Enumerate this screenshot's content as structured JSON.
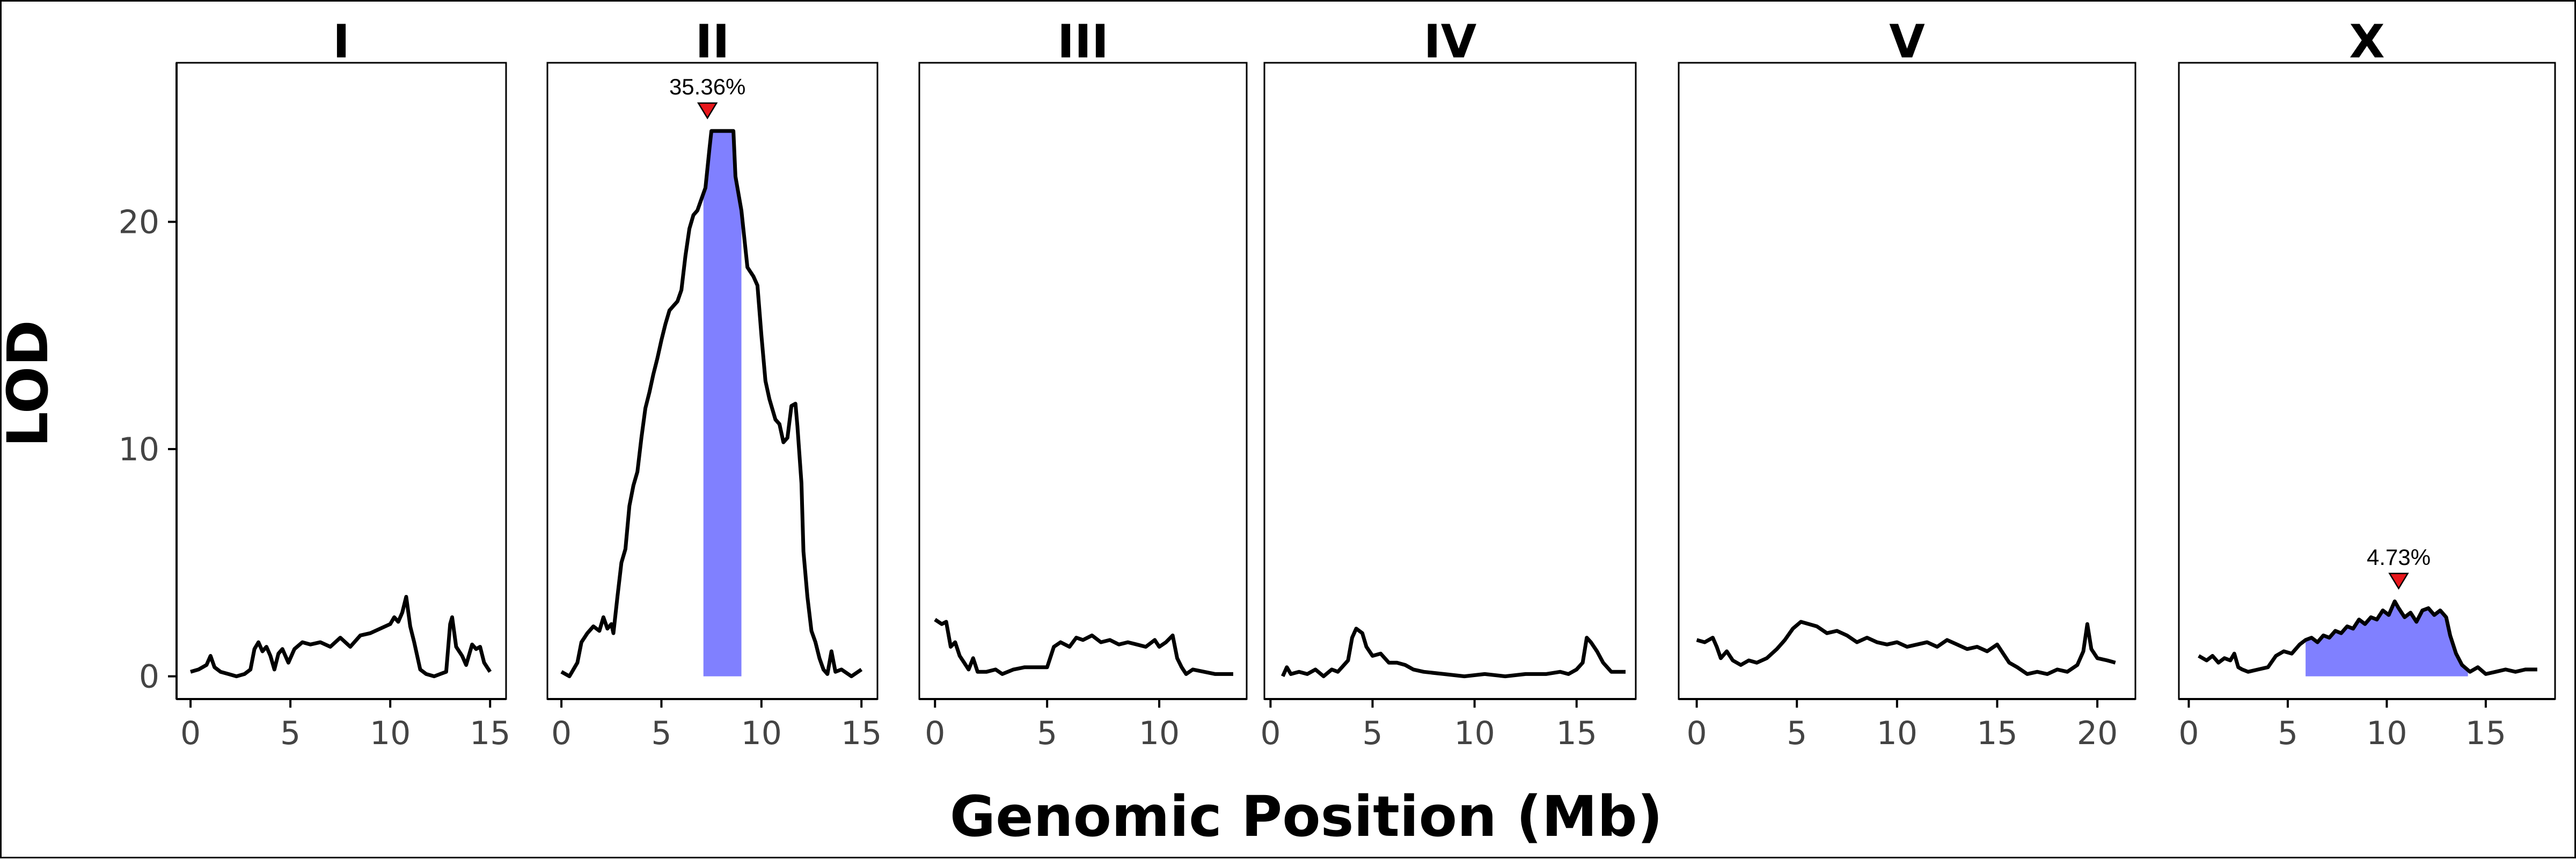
{
  "chart_data": {
    "type": "line",
    "xlabel": "Genomic Position (Mb)",
    "ylabel": "LOD",
    "ylim": [
      -1,
      27
    ],
    "yticks": [
      0,
      10,
      20
    ],
    "grid": false,
    "colors": {
      "line": "#000000",
      "interval": "#8080ff",
      "marker": "#e8161b"
    },
    "panels": [
      {
        "name": "I",
        "xlim": [
          -0.7,
          15.8
        ],
        "xticks": [
          0,
          5,
          10,
          15
        ],
        "points": [
          [
            0,
            0.2
          ],
          [
            0.4,
            0.3
          ],
          [
            0.8,
            0.5
          ],
          [
            1.0,
            0.9
          ],
          [
            1.2,
            0.4
          ],
          [
            1.5,
            0.2
          ],
          [
            1.9,
            0.1
          ],
          [
            2.3,
            0.0
          ],
          [
            2.7,
            0.1
          ],
          [
            3.0,
            0.3
          ],
          [
            3.2,
            1.2
          ],
          [
            3.4,
            1.5
          ],
          [
            3.6,
            1.1
          ],
          [
            3.8,
            1.3
          ],
          [
            4.0,
            0.9
          ],
          [
            4.2,
            0.3
          ],
          [
            4.4,
            1.0
          ],
          [
            4.6,
            1.2
          ],
          [
            4.9,
            0.6
          ],
          [
            5.2,
            1.2
          ],
          [
            5.6,
            1.5
          ],
          [
            6.0,
            1.4
          ],
          [
            6.5,
            1.5
          ],
          [
            7.0,
            1.3
          ],
          [
            7.5,
            1.7
          ],
          [
            8.0,
            1.3
          ],
          [
            8.5,
            1.8
          ],
          [
            9.0,
            1.9
          ],
          [
            9.5,
            2.1
          ],
          [
            10.0,
            2.3
          ],
          [
            10.2,
            2.6
          ],
          [
            10.4,
            2.4
          ],
          [
            10.6,
            2.8
          ],
          [
            10.8,
            3.5
          ],
          [
            11.0,
            2.2
          ],
          [
            11.2,
            1.5
          ],
          [
            11.5,
            0.3
          ],
          [
            11.8,
            0.1
          ],
          [
            12.2,
            0.0
          ],
          [
            12.5,
            0.1
          ],
          [
            12.8,
            0.2
          ],
          [
            13.0,
            2.3
          ],
          [
            13.1,
            2.6
          ],
          [
            13.3,
            1.3
          ],
          [
            13.6,
            0.9
          ],
          [
            13.8,
            0.5
          ],
          [
            14.1,
            1.4
          ],
          [
            14.3,
            1.2
          ],
          [
            14.5,
            1.3
          ],
          [
            14.7,
            0.6
          ],
          [
            15.0,
            0.2
          ]
        ],
        "intervals": [],
        "peaks": []
      },
      {
        "name": "II",
        "xlim": [
          -0.7,
          15.8
        ],
        "xticks": [
          0,
          5,
          10,
          15
        ],
        "points": [
          [
            0,
            0.2
          ],
          [
            0.4,
            0.0
          ],
          [
            0.8,
            0.6
          ],
          [
            1.0,
            1.5
          ],
          [
            1.3,
            1.9
          ],
          [
            1.6,
            2.2
          ],
          [
            1.9,
            2.0
          ],
          [
            2.1,
            2.6
          ],
          [
            2.3,
            2.1
          ],
          [
            2.5,
            2.3
          ],
          [
            2.6,
            1.9
          ],
          [
            2.8,
            3.5
          ],
          [
            3.0,
            5.0
          ],
          [
            3.2,
            5.6
          ],
          [
            3.4,
            7.5
          ],
          [
            3.6,
            8.4
          ],
          [
            3.8,
            9.0
          ],
          [
            4.0,
            10.5
          ],
          [
            4.2,
            11.8
          ],
          [
            4.4,
            12.5
          ],
          [
            4.6,
            13.3
          ],
          [
            4.8,
            14.0
          ],
          [
            5.0,
            14.8
          ],
          [
            5.2,
            15.5
          ],
          [
            5.4,
            16.1
          ],
          [
            5.6,
            16.3
          ],
          [
            5.8,
            16.5
          ],
          [
            6.0,
            17.0
          ],
          [
            6.2,
            18.5
          ],
          [
            6.4,
            19.7
          ],
          [
            6.6,
            20.3
          ],
          [
            6.8,
            20.5
          ],
          [
            7.0,
            21.0
          ],
          [
            7.2,
            21.5
          ],
          [
            7.4,
            23.2
          ],
          [
            7.5,
            24.0
          ],
          [
            8.6,
            24.0
          ],
          [
            8.7,
            22.0
          ],
          [
            9.0,
            20.5
          ],
          [
            9.3,
            18.0
          ],
          [
            9.6,
            17.6
          ],
          [
            9.8,
            17.2
          ],
          [
            10.0,
            15.0
          ],
          [
            10.2,
            13.0
          ],
          [
            10.4,
            12.2
          ],
          [
            10.7,
            11.3
          ],
          [
            10.9,
            11.1
          ],
          [
            11.1,
            10.3
          ],
          [
            11.3,
            10.5
          ],
          [
            11.5,
            11.9
          ],
          [
            11.7,
            12.0
          ],
          [
            11.8,
            11.0
          ],
          [
            12.0,
            8.5
          ],
          [
            12.1,
            5.5
          ],
          [
            12.3,
            3.5
          ],
          [
            12.5,
            2.0
          ],
          [
            12.7,
            1.5
          ],
          [
            12.9,
            0.8
          ],
          [
            13.1,
            0.3
          ],
          [
            13.3,
            0.1
          ],
          [
            13.5,
            1.1
          ],
          [
            13.7,
            0.2
          ],
          [
            14.0,
            0.3
          ],
          [
            14.5,
            0.0
          ],
          [
            15.0,
            0.3
          ]
        ],
        "intervals": [
          {
            "x0": 7.1,
            "x1": 9.0,
            "from_baseline": true
          }
        ],
        "peaks": [
          {
            "x": 7.3,
            "y": 24.0,
            "label": "35.36%"
          }
        ]
      },
      {
        "name": "III",
        "xlim": [
          -0.7,
          13.9
        ],
        "xticks": [
          0,
          5,
          10
        ],
        "points": [
          [
            0,
            2.5
          ],
          [
            0.3,
            2.3
          ],
          [
            0.5,
            2.4
          ],
          [
            0.7,
            1.3
          ],
          [
            0.9,
            1.5
          ],
          [
            1.1,
            0.9
          ],
          [
            1.3,
            0.6
          ],
          [
            1.5,
            0.3
          ],
          [
            1.7,
            0.8
          ],
          [
            1.9,
            0.2
          ],
          [
            2.3,
            0.2
          ],
          [
            2.7,
            0.3
          ],
          [
            3.0,
            0.1
          ],
          [
            3.5,
            0.3
          ],
          [
            4.0,
            0.4
          ],
          [
            4.5,
            0.4
          ],
          [
            5.0,
            0.4
          ],
          [
            5.3,
            1.3
          ],
          [
            5.6,
            1.5
          ],
          [
            6.0,
            1.3
          ],
          [
            6.3,
            1.7
          ],
          [
            6.6,
            1.6
          ],
          [
            7.0,
            1.8
          ],
          [
            7.4,
            1.5
          ],
          [
            7.8,
            1.6
          ],
          [
            8.2,
            1.4
          ],
          [
            8.6,
            1.5
          ],
          [
            9.0,
            1.4
          ],
          [
            9.4,
            1.3
          ],
          [
            9.8,
            1.6
          ],
          [
            10.0,
            1.3
          ],
          [
            10.3,
            1.5
          ],
          [
            10.6,
            1.8
          ],
          [
            10.8,
            0.8
          ],
          [
            11.0,
            0.4
          ],
          [
            11.2,
            0.1
          ],
          [
            11.5,
            0.3
          ],
          [
            12.0,
            0.2
          ],
          [
            12.5,
            0.1
          ],
          [
            13.3,
            0.1
          ]
        ],
        "intervals": [],
        "peaks": []
      },
      {
        "name": "IV",
        "xlim": [
          -0.3,
          17.9
        ],
        "xticks": [
          0,
          5,
          10,
          15
        ],
        "points": [
          [
            0.6,
            0.0
          ],
          [
            0.8,
            0.4
          ],
          [
            1.0,
            0.1
          ],
          [
            1.4,
            0.2
          ],
          [
            1.8,
            0.1
          ],
          [
            2.2,
            0.3
          ],
          [
            2.6,
            0.0
          ],
          [
            3.0,
            0.3
          ],
          [
            3.3,
            0.2
          ],
          [
            3.6,
            0.5
          ],
          [
            3.8,
            0.7
          ],
          [
            4.0,
            1.7
          ],
          [
            4.2,
            2.1
          ],
          [
            4.5,
            1.9
          ],
          [
            4.7,
            1.3
          ],
          [
            5.0,
            0.9
          ],
          [
            5.4,
            1.0
          ],
          [
            5.8,
            0.6
          ],
          [
            6.2,
            0.6
          ],
          [
            6.6,
            0.5
          ],
          [
            7.0,
            0.3
          ],
          [
            7.5,
            0.2
          ],
          [
            8.5,
            0.1
          ],
          [
            9.5,
            0.0
          ],
          [
            10.5,
            0.1
          ],
          [
            11.5,
            0.0
          ],
          [
            12.5,
            0.1
          ],
          [
            13.5,
            0.1
          ],
          [
            14.2,
            0.2
          ],
          [
            14.6,
            0.1
          ],
          [
            15.0,
            0.3
          ],
          [
            15.3,
            0.6
          ],
          [
            15.5,
            1.7
          ],
          [
            15.7,
            1.5
          ],
          [
            16.0,
            1.1
          ],
          [
            16.3,
            0.6
          ],
          [
            16.7,
            0.2
          ],
          [
            17.4,
            0.2
          ]
        ],
        "intervals": [],
        "peaks": []
      },
      {
        "name": "V",
        "xlim": [
          -0.9,
          21.9
        ],
        "xticks": [
          0,
          5,
          10,
          15,
          20
        ],
        "points": [
          [
            0,
            1.6
          ],
          [
            0.4,
            1.5
          ],
          [
            0.8,
            1.7
          ],
          [
            1.0,
            1.3
          ],
          [
            1.2,
            0.8
          ],
          [
            1.5,
            1.1
          ],
          [
            1.8,
            0.7
          ],
          [
            2.2,
            0.5
          ],
          [
            2.6,
            0.7
          ],
          [
            3.0,
            0.6
          ],
          [
            3.5,
            0.8
          ],
          [
            4.0,
            1.2
          ],
          [
            4.4,
            1.6
          ],
          [
            4.8,
            2.1
          ],
          [
            5.2,
            2.4
          ],
          [
            5.6,
            2.3
          ],
          [
            6.0,
            2.2
          ],
          [
            6.5,
            1.9
          ],
          [
            7.0,
            2.0
          ],
          [
            7.5,
            1.8
          ],
          [
            8.0,
            1.5
          ],
          [
            8.5,
            1.7
          ],
          [
            9.0,
            1.5
          ],
          [
            9.5,
            1.4
          ],
          [
            10.0,
            1.5
          ],
          [
            10.5,
            1.3
          ],
          [
            11.0,
            1.4
          ],
          [
            11.5,
            1.5
          ],
          [
            12.0,
            1.3
          ],
          [
            12.5,
            1.6
          ],
          [
            13.0,
            1.4
          ],
          [
            13.5,
            1.2
          ],
          [
            14.0,
            1.3
          ],
          [
            14.5,
            1.1
          ],
          [
            15.0,
            1.4
          ],
          [
            15.3,
            1.0
          ],
          [
            15.6,
            0.6
          ],
          [
            16.0,
            0.4
          ],
          [
            16.5,
            0.1
          ],
          [
            17.0,
            0.2
          ],
          [
            17.5,
            0.1
          ],
          [
            18.0,
            0.3
          ],
          [
            18.5,
            0.2
          ],
          [
            19.0,
            0.5
          ],
          [
            19.3,
            1.1
          ],
          [
            19.5,
            2.3
          ],
          [
            19.7,
            1.2
          ],
          [
            20.0,
            0.8
          ],
          [
            20.5,
            0.7
          ],
          [
            20.9,
            0.6
          ]
        ],
        "intervals": [],
        "peaks": []
      },
      {
        "name": "X",
        "xlim": [
          -0.5,
          18.5
        ],
        "xticks": [
          0,
          5,
          10,
          15
        ],
        "points": [
          [
            0.5,
            0.9
          ],
          [
            0.9,
            0.7
          ],
          [
            1.2,
            0.9
          ],
          [
            1.5,
            0.6
          ],
          [
            1.8,
            0.8
          ],
          [
            2.1,
            0.7
          ],
          [
            2.3,
            1.0
          ],
          [
            2.5,
            0.4
          ],
          [
            2.7,
            0.3
          ],
          [
            3.0,
            0.2
          ],
          [
            3.5,
            0.3
          ],
          [
            4.0,
            0.4
          ],
          [
            4.4,
            0.9
          ],
          [
            4.8,
            1.1
          ],
          [
            5.2,
            1.0
          ],
          [
            5.6,
            1.4
          ],
          [
            5.9,
            1.6
          ],
          [
            6.2,
            1.7
          ],
          [
            6.5,
            1.5
          ],
          [
            6.8,
            1.8
          ],
          [
            7.1,
            1.7
          ],
          [
            7.4,
            2.0
          ],
          [
            7.7,
            1.9
          ],
          [
            8.0,
            2.2
          ],
          [
            8.3,
            2.1
          ],
          [
            8.6,
            2.5
          ],
          [
            8.9,
            2.3
          ],
          [
            9.2,
            2.6
          ],
          [
            9.5,
            2.5
          ],
          [
            9.8,
            2.9
          ],
          [
            10.1,
            2.7
          ],
          [
            10.4,
            3.3
          ],
          [
            10.6,
            3.0
          ],
          [
            10.9,
            2.6
          ],
          [
            11.2,
            2.8
          ],
          [
            11.5,
            2.4
          ],
          [
            11.8,
            2.9
          ],
          [
            12.1,
            3.0
          ],
          [
            12.4,
            2.7
          ],
          [
            12.7,
            2.9
          ],
          [
            13.0,
            2.6
          ],
          [
            13.2,
            1.8
          ],
          [
            13.5,
            1.0
          ],
          [
            13.8,
            0.5
          ],
          [
            14.2,
            0.2
          ],
          [
            14.6,
            0.4
          ],
          [
            15.0,
            0.1
          ],
          [
            15.5,
            0.2
          ],
          [
            16.0,
            0.3
          ],
          [
            16.5,
            0.2
          ],
          [
            17.0,
            0.3
          ],
          [
            17.6,
            0.3
          ]
        ],
        "intervals": [
          {
            "x0": 5.9,
            "x1": 14.1,
            "from_baseline": false
          }
        ],
        "peaks": [
          {
            "x": 10.6,
            "y": 3.3,
            "label": "4.73%"
          }
        ]
      }
    ]
  }
}
